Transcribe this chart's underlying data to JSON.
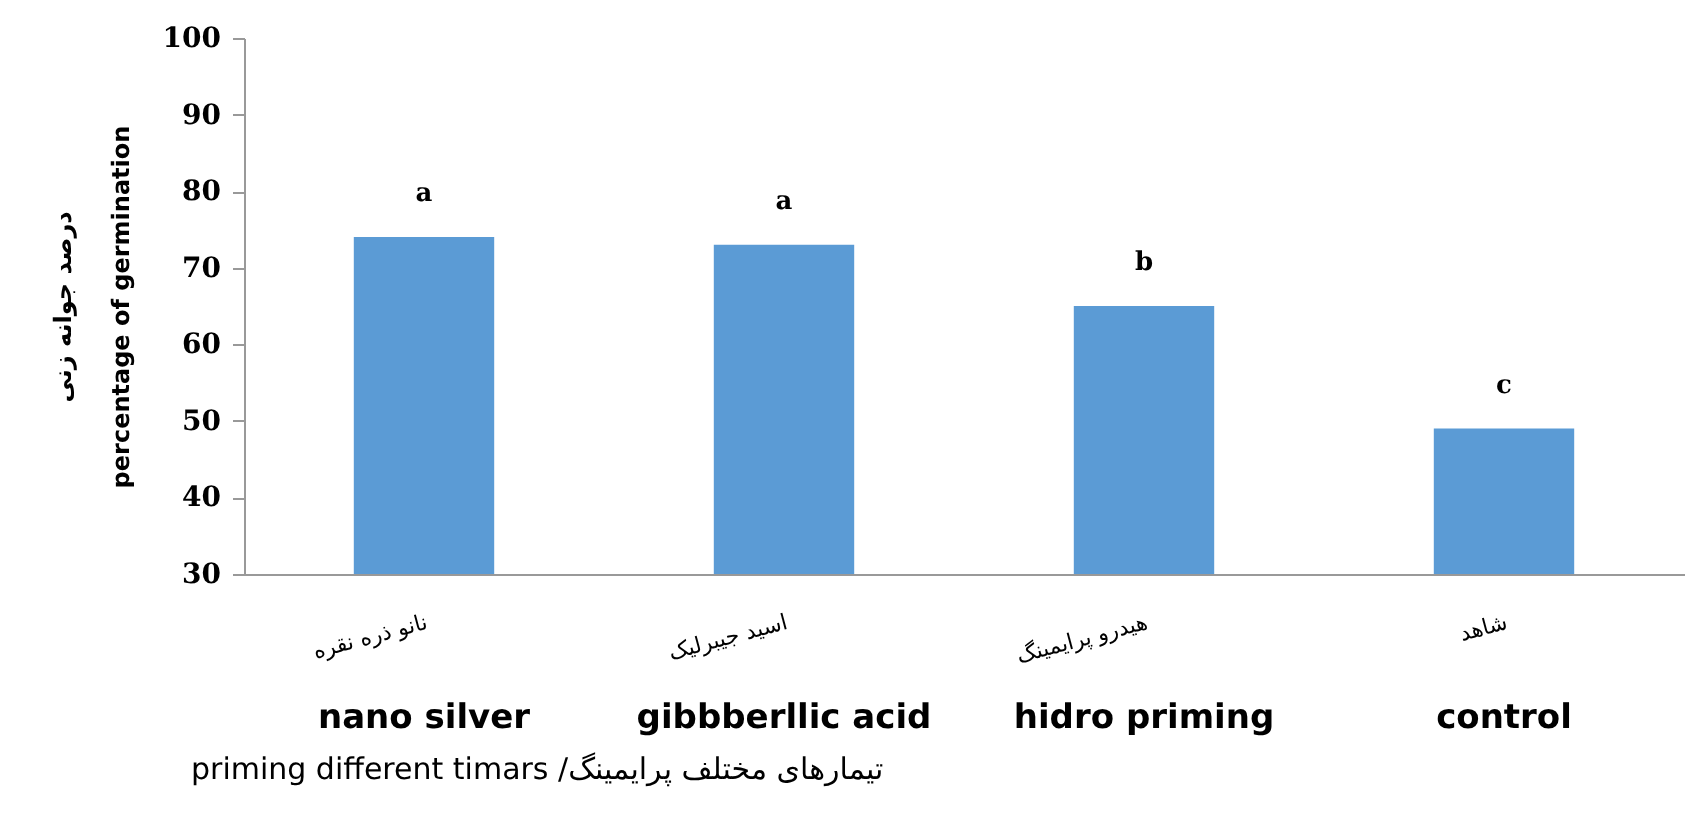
{
  "chart_data": {
    "type": "bar",
    "categories": [
      "نانو ذره نقره",
      "اسید جیبرلیک",
      "هیدرو پرایمینگ",
      "شاهد"
    ],
    "values": [
      74,
      73,
      65,
      49
    ],
    "color": "#5b9bd5",
    "value_labels": [
      "a",
      "a",
      "b",
      "c"
    ],
    "ylim": [
      30,
      100
    ],
    "yticks": [
      30,
      40,
      50,
      60,
      70,
      80,
      90,
      100
    ],
    "ylabel": "درصد جوانه زنی\npercentage of germination",
    "xlabel": "priming  different timars  /تیمارهای مختلف پرایمینگ",
    "annotations": [
      "nano  silver",
      "gibbberllic   acid",
      "hidro  priming",
      "control"
    ],
    "grid": false
  }
}
